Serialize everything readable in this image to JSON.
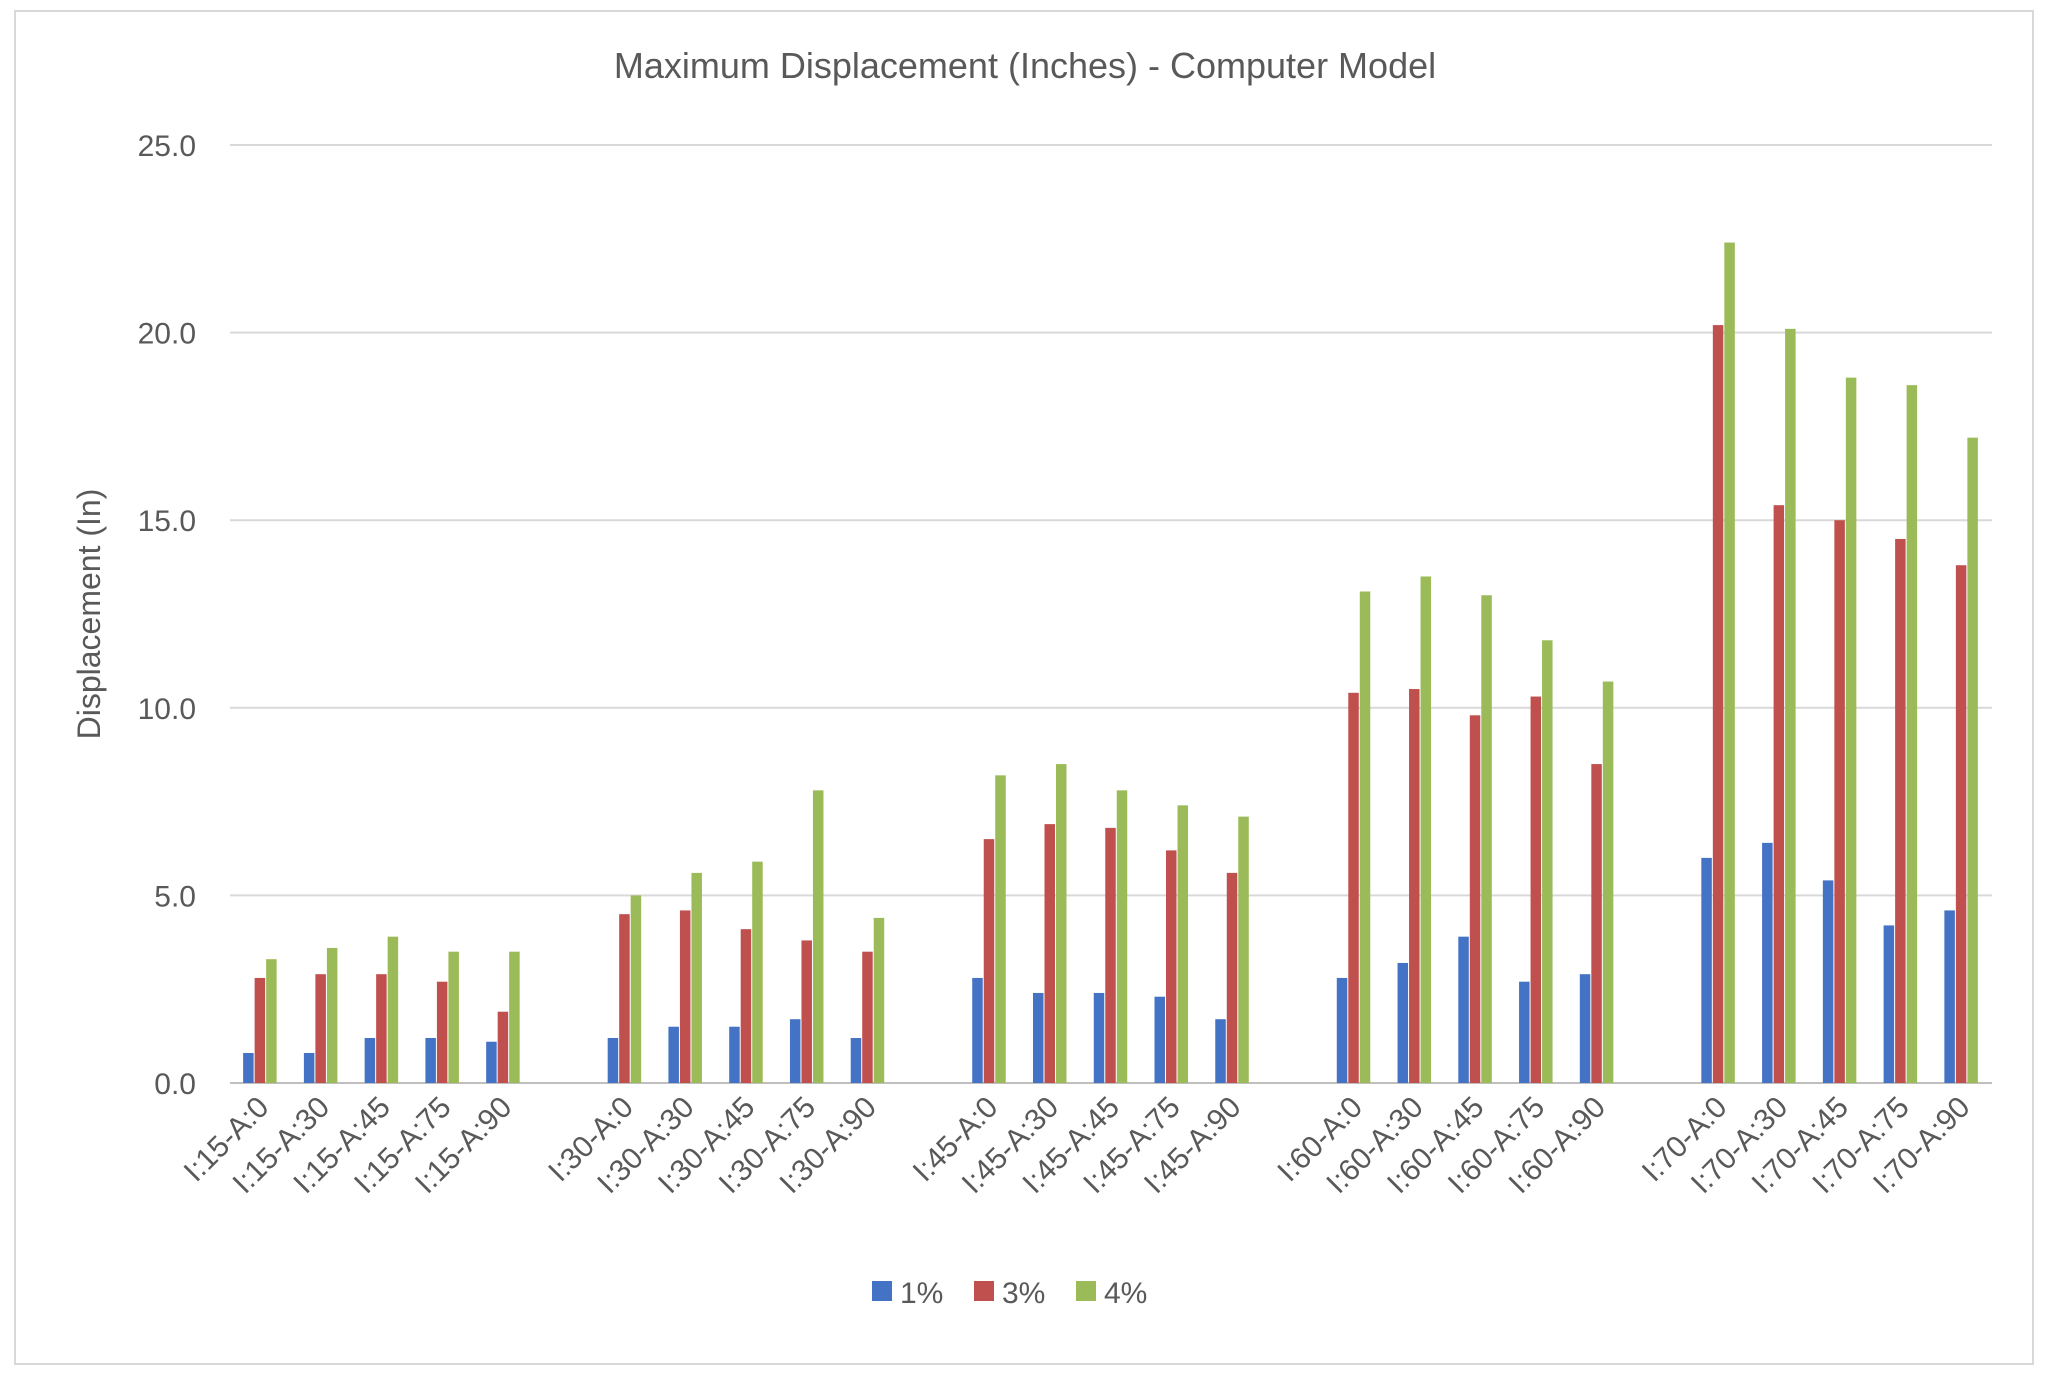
{
  "chart_data": {
    "type": "bar",
    "title": "Maximum Displacement (Inches) - Computer Model",
    "xlabel": "",
    "ylabel": "Displacement (In)",
    "ylim": [
      0,
      25
    ],
    "yticks": [
      "0.0",
      "5.0",
      "10.0",
      "15.0",
      "20.0",
      "25.0"
    ],
    "grid": true,
    "legend_position": "bottom",
    "groups": [
      [
        "I:15-A:0",
        "I:15-A:30",
        "I:15-A:45",
        "I:15-A:75",
        "I:15-A:90"
      ],
      [
        "I:30-A:0",
        "I:30-A:30",
        "I:30-A:45",
        "I:30-A:75",
        "I:30-A:90"
      ],
      [
        "I:45-A:0",
        "I:45-A:30",
        "I:45-A:45",
        "I:45-A:75",
        "I:45-A:90"
      ],
      [
        "I:60-A:0",
        "I:60-A:30",
        "I:60-A:45",
        "I:60-A:75",
        "I:60-A:90"
      ],
      [
        "I:70-A:0",
        "I:70-A:30",
        "I:70-A:45",
        "I:70-A:75",
        "I:70-A:90"
      ]
    ],
    "series": [
      {
        "name": "1%",
        "color": "#4472c4",
        "values": [
          [
            0.8,
            0.8,
            1.2,
            1.2,
            1.1
          ],
          [
            1.2,
            1.5,
            1.5,
            1.7,
            1.2
          ],
          [
            2.8,
            2.4,
            2.4,
            2.3,
            1.7
          ],
          [
            2.8,
            3.2,
            3.9,
            2.7,
            2.9
          ],
          [
            6.0,
            6.4,
            5.4,
            4.2,
            4.6
          ]
        ]
      },
      {
        "name": "3%",
        "color": "#c0504d",
        "values": [
          [
            2.8,
            2.9,
            2.9,
            2.7,
            1.9
          ],
          [
            4.5,
            4.6,
            4.1,
            3.8,
            3.5
          ],
          [
            6.5,
            6.9,
            6.8,
            6.2,
            5.6
          ],
          [
            10.4,
            10.5,
            9.8,
            10.3,
            8.5
          ],
          [
            20.2,
            15.4,
            15.0,
            14.5,
            13.8
          ]
        ]
      },
      {
        "name": "4%",
        "color": "#9bbb59",
        "values": [
          [
            3.3,
            3.6,
            3.9,
            3.5,
            3.5
          ],
          [
            5.0,
            5.6,
            5.9,
            7.8,
            4.4
          ],
          [
            8.2,
            8.5,
            7.8,
            7.4,
            7.1
          ],
          [
            13.1,
            13.5,
            13.0,
            11.8,
            10.7
          ],
          [
            22.4,
            20.1,
            18.8,
            18.6,
            17.2
          ]
        ]
      }
    ]
  }
}
